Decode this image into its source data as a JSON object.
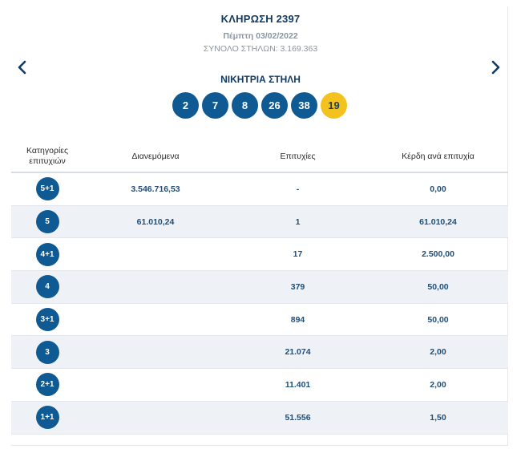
{
  "draw": {
    "title": "ΚΛΗΡΩΣΗ 2397",
    "date": "Πέμπτη 03/02/2022",
    "total_columns": "ΣΥΝΟΛΟ ΣΤΗΛΩΝ: 3.169.363"
  },
  "winning_label": "ΝΙΚΗΤΡΙΑ ΣΤΗΛΗ",
  "numbers": [
    "2",
    "7",
    "8",
    "26",
    "38"
  ],
  "joker": "19",
  "colors": {
    "primary": "#0f5a93",
    "joker": "#f4c21f",
    "alt_row": "#eef1f6"
  },
  "table": {
    "headers": {
      "categories_line1": "Κατηγορίες",
      "categories_line2": "επιτυχιών",
      "distributed": "Διανεμόμενα",
      "winners": "Επιτυχίες",
      "prize": "Κέρδη ανά επιτυχία"
    },
    "rows": [
      {
        "category": "5+1",
        "distributed": "3.546.716,53",
        "winners": "-",
        "prize": "0,00"
      },
      {
        "category": "5",
        "distributed": "61.010,24",
        "winners": "1",
        "prize": "61.010,24"
      },
      {
        "category": "4+1",
        "distributed": "",
        "winners": "17",
        "prize": "2.500,00"
      },
      {
        "category": "4",
        "distributed": "",
        "winners": "379",
        "prize": "50,00"
      },
      {
        "category": "3+1",
        "distributed": "",
        "winners": "894",
        "prize": "50,00"
      },
      {
        "category": "3",
        "distributed": "",
        "winners": "21.074",
        "prize": "2,00"
      },
      {
        "category": "2+1",
        "distributed": "",
        "winners": "11.401",
        "prize": "2,00"
      },
      {
        "category": "1+1",
        "distributed": "",
        "winners": "51.556",
        "prize": "1,50"
      }
    ]
  },
  "icons": {
    "prev": "chevron-left-icon",
    "next": "chevron-right-icon"
  }
}
